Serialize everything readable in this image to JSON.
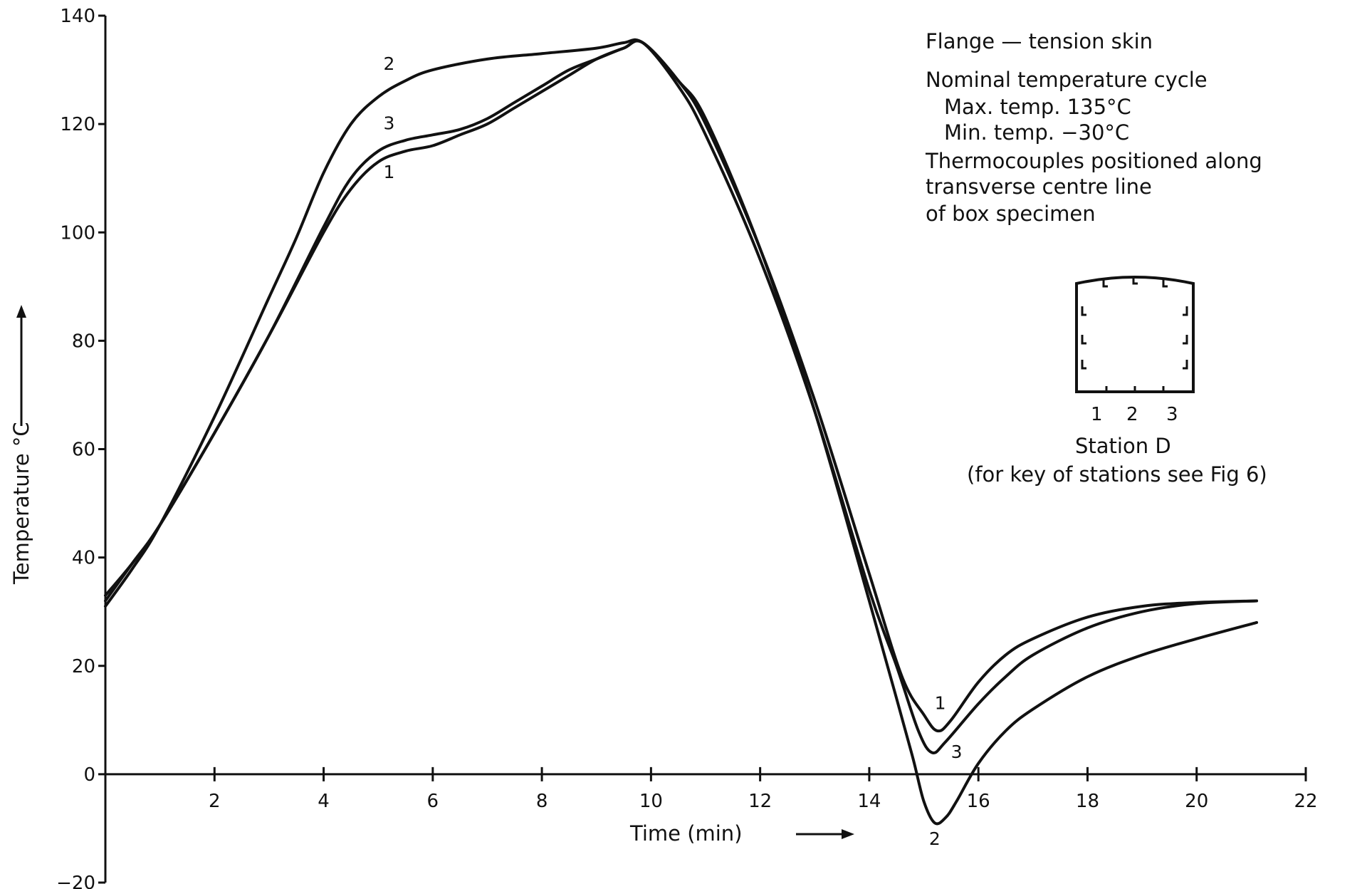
{
  "chart_data": {
    "type": "line",
    "xlabel": "Time (min)",
    "ylabel": "Temperature °C",
    "xlim": [
      0,
      22
    ],
    "ylim": [
      -20,
      140
    ],
    "xticks": [
      2,
      4,
      6,
      8,
      10,
      12,
      14,
      16,
      18,
      20,
      22
    ],
    "yticks": [
      -20,
      0,
      20,
      40,
      60,
      80,
      100,
      120,
      140
    ],
    "grid": false,
    "legend": "none",
    "notes": [
      "Flange — tension skin",
      "Nominal temperature cycle",
      "Max. temp. 135°C",
      "Min. temp. −30°C",
      "Thermocouples positioned along",
      "transverse centre line",
      "of box specimen"
    ],
    "inset": {
      "station_labels": [
        "1",
        "2",
        "3"
      ],
      "caption": "Station D",
      "subcaption": "(for key of stations see Fig 6)"
    },
    "series": [
      {
        "name": "1",
        "x": [
          0,
          0.5,
          1,
          2,
          3,
          4,
          4.5,
          5,
          5.5,
          6,
          6.5,
          7,
          7.5,
          8,
          8.5,
          9,
          9.5,
          9.85,
          10.5,
          11,
          12,
          13,
          14,
          14.6,
          15,
          15.25,
          15.5,
          16,
          16.5,
          17,
          18,
          19,
          20,
          21.1
        ],
        "y": [
          32,
          39,
          46,
          63,
          81,
          100,
          108,
          113,
          115,
          116,
          118,
          120,
          123,
          126,
          129,
          132,
          134,
          135,
          128,
          120,
          97,
          69,
          37,
          18,
          11,
          8,
          10,
          17,
          22,
          25,
          29,
          31,
          31.7,
          32
        ]
      },
      {
        "name": "2",
        "x": [
          0,
          0.5,
          1,
          2,
          3,
          3.5,
          4,
          4.5,
          5,
          5.5,
          6,
          7,
          8,
          9,
          9.5,
          9.85,
          10.5,
          11,
          12,
          13,
          14,
          14.5,
          14.8,
          15,
          15.2,
          15.4,
          15.6,
          16,
          16.5,
          17,
          18,
          19,
          20,
          21.1
        ],
        "y": [
          31,
          38,
          46,
          66,
          88,
          99,
          111,
          120,
          125,
          128,
          130,
          132,
          133,
          134,
          135,
          135,
          128,
          121,
          97,
          67,
          32,
          14,
          3,
          -5,
          -9,
          -8,
          -5,
          2,
          8,
          12,
          18,
          22,
          25,
          28
        ]
      },
      {
        "name": "3",
        "x": [
          0,
          0.5,
          1,
          2,
          3,
          4,
          4.5,
          5,
          5.5,
          6,
          6.5,
          7,
          7.5,
          8,
          8.5,
          9,
          9.5,
          9.85,
          10.5,
          11,
          12,
          13,
          14,
          14.5,
          14.9,
          15.15,
          15.4,
          16,
          16.5,
          17,
          18,
          19,
          20,
          21.1
        ],
        "y": [
          33,
          39,
          46,
          63,
          81,
          101,
          110,
          115,
          117,
          118,
          119,
          121,
          124,
          127,
          130,
          132,
          134,
          135,
          127,
          118,
          95,
          67,
          34,
          20,
          8,
          4,
          6,
          13,
          18,
          22,
          27,
          30,
          31.5,
          32
        ]
      }
    ],
    "curve_labels": [
      {
        "text": "2",
        "x": 5.2,
        "y": 130
      },
      {
        "text": "3",
        "x": 5.2,
        "y": 119
      },
      {
        "text": "1",
        "x": 5.2,
        "y": 110
      },
      {
        "text": "1",
        "x": 15.3,
        "y": 12
      },
      {
        "text": "3",
        "x": 15.6,
        "y": 3
      },
      {
        "text": "2",
        "x": 15.2,
        "y": -13
      }
    ]
  }
}
